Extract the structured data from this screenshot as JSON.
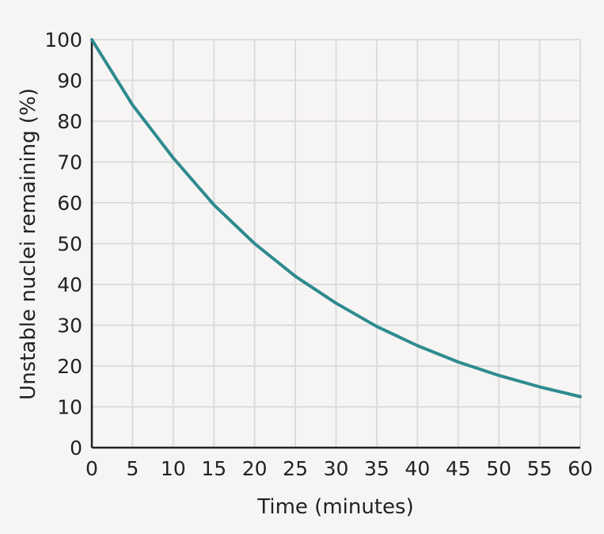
{
  "chart_data": {
    "type": "line",
    "xlabel": "Time (minutes)",
    "ylabel": "Unstable nuclei remaining (%)",
    "xlim": [
      0,
      60
    ],
    "ylim": [
      0,
      100
    ],
    "x_ticks": [
      "0",
      "5",
      "10",
      "15",
      "20",
      "25",
      "30",
      "35",
      "40",
      "45",
      "50",
      "55",
      "60"
    ],
    "y_ticks": [
      "0",
      "10",
      "20",
      "30",
      "40",
      "50",
      "60",
      "70",
      "80",
      "90",
      "100"
    ],
    "grid": true,
    "colors": {
      "line": "#2e8b8f",
      "grid": "#dcdcdc",
      "axis": "#222222",
      "background": "#f7f5f4"
    },
    "series": [
      {
        "x": [
          0,
          5,
          10,
          15,
          20,
          25,
          30,
          35,
          40,
          45,
          50,
          55,
          60
        ],
        "y": [
          100,
          84,
          71,
          59.5,
          50,
          42,
          35.4,
          29.7,
          25,
          21,
          17.7,
          14.9,
          12.5
        ]
      }
    ]
  }
}
